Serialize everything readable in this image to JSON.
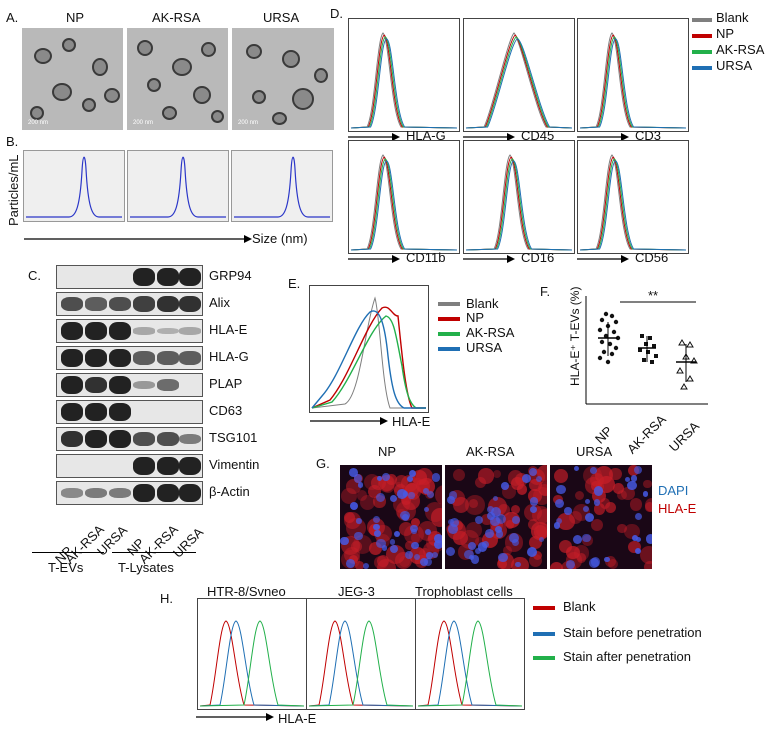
{
  "panels": {
    "a": {
      "letter": "A.",
      "titles": [
        "NP",
        "AK-RSA",
        "URSA"
      ],
      "scale_bar": "200 nm"
    },
    "b": {
      "letter": "B.",
      "ylabel": "Particles/mL",
      "xlabel": "Size (nm)"
    },
    "c": {
      "letter": "C.",
      "proteins": [
        "GRP94",
        "Alix",
        "HLA-E",
        "HLA-G",
        "PLAP",
        "CD63",
        "TSG101",
        "Vimentin",
        "β-Actin"
      ],
      "lanes": [
        "NP",
        "AK-RSA",
        "URSA",
        "NP",
        "AK-RSA",
        "URSA"
      ],
      "groups": [
        "T-EVs",
        "T-Lysates"
      ]
    },
    "d": {
      "letter": "D.",
      "markers": [
        "HLA-G",
        "CD45",
        "CD3",
        "CD11b",
        "CD16",
        "CD56"
      ],
      "legend": [
        "Blank",
        "NP",
        "AK-RSA",
        "URSA"
      ]
    },
    "e": {
      "letter": "E.",
      "xlabel": "HLA-E",
      "legend": [
        "Blank",
        "NP",
        "AK-RSA",
        "URSA"
      ]
    },
    "f": {
      "letter": "F.",
      "ylabel": "HLA-E⁺ T-EVs (%)",
      "significance": "**",
      "categories": [
        "NP",
        "AK-RSA",
        "URSA"
      ]
    },
    "g": {
      "letter": "G.",
      "titles": [
        "NP",
        "AK-RSA",
        "URSA"
      ],
      "legend": [
        "DAPI",
        "HLA-E"
      ]
    },
    "h": {
      "letter": "H.",
      "titles": [
        "HTR-8/Svneo",
        "JEG-3",
        "Trophoblast cells"
      ],
      "xlabel": "HLA-E",
      "legend": [
        "Blank",
        "Stain before penetration",
        "Stain after penetration"
      ]
    }
  },
  "colors": {
    "blank": "#7f7f7f",
    "np": "#c00000",
    "akrsa": "#22b04a",
    "ursa": "#1f6fb4",
    "h_blank": "#c00000",
    "h_before": "#1f6fb4",
    "h_after": "#22b04a",
    "dapi": "#1f6fb4",
    "hlae": "#c00000"
  }
}
